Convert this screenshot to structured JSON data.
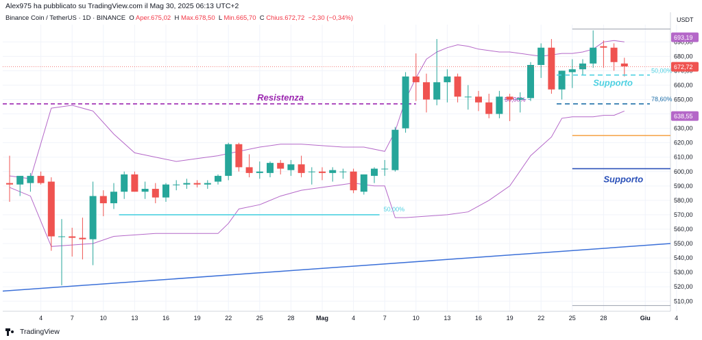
{
  "header": {
    "author_line": "Alex975 ha pubblicato su TradingView.com il Mag 30, 2025 06:13 UTC+2",
    "symbol": "Binance Coin / TetherUS · 1D · BINANCE",
    "open_label": "O",
    "open_text": "Aper.675,02",
    "high_label": "H",
    "high_text": "Max.678,50",
    "low_label": "L",
    "low_text": "Min.665,70",
    "close_label": "C",
    "close_text": "Chius.672,72",
    "change_text": "−2,30 (−0,34%)"
  },
  "brand": {
    "name": "TradingView",
    "icon": "tradingview-logo-icon"
  },
  "colors": {
    "up": "#26a69a",
    "down": "#ef5350",
    "bollinger": "#b467c8",
    "resistance": "#9c27b0",
    "support_cyan": "#4dd0e1",
    "trend": "#3a6fd8",
    "fib_blue": "#1e6fa8",
    "orange": "#f5a042",
    "support_blue": "#2a50b8",
    "axis_text": "#131722",
    "grid": "#f0f3fa"
  },
  "chart_data": {
    "type": "candlestick",
    "title": "",
    "currency": "USDT",
    "y_ticks": [
      510,
      520,
      530,
      540,
      550,
      560,
      570,
      580,
      590,
      600,
      610,
      620,
      630,
      640,
      650,
      660,
      670,
      680,
      690
    ],
    "y_tick_labels": [
      "510,00",
      "520,00",
      "530,00",
      "540,00",
      "550,00",
      "560,00",
      "570,00",
      "580,00",
      "590,00",
      "600,00",
      "610,00",
      "620,00",
      "630,00",
      "640,00",
      "650,00",
      "660,00",
      "670,00",
      "680,00",
      "690,00"
    ],
    "ylim": [
      503,
      702
    ],
    "x_tick_labels": [
      "4",
      "7",
      "10",
      "13",
      "16",
      "19",
      "22",
      "25",
      "28",
      "Mag",
      "4",
      "7",
      "10",
      "13",
      "16",
      "19",
      "22",
      "25",
      "28",
      "Giu",
      "4"
    ],
    "x_tick_days": [
      3,
      6,
      9,
      12,
      15,
      18,
      21,
      24,
      27,
      30,
      33,
      36,
      39,
      42,
      45,
      48,
      51,
      54,
      57,
      61,
      64
    ],
    "bold_x_labels": [
      "Mag",
      "Giu"
    ],
    "candles": [
      {
        "day": 0,
        "o": 592,
        "h": 611,
        "l": 579,
        "c": 591
      },
      {
        "day": 1,
        "o": 591,
        "h": 597,
        "l": 583,
        "c": 597
      },
      {
        "day": 2,
        "o": 592,
        "h": 599,
        "l": 586,
        "c": 597
      },
      {
        "day": 3,
        "o": 597,
        "h": 600,
        "l": 591,
        "c": 592
      },
      {
        "day": 4,
        "o": 593,
        "h": 596,
        "l": 545,
        "c": 555
      },
      {
        "day": 5,
        "o": 555,
        "h": 567,
        "l": 521,
        "c": 555
      },
      {
        "day": 6,
        "o": 555,
        "h": 561,
        "l": 541,
        "c": 554
      },
      {
        "day": 7,
        "o": 554,
        "h": 568,
        "l": 539,
        "c": 553
      },
      {
        "day": 8,
        "o": 553,
        "h": 593,
        "l": 535,
        "c": 583
      },
      {
        "day": 9,
        "o": 583,
        "h": 587,
        "l": 569,
        "c": 578
      },
      {
        "day": 10,
        "o": 578,
        "h": 592,
        "l": 574,
        "c": 586
      },
      {
        "day": 11,
        "o": 586,
        "h": 600,
        "l": 581,
        "c": 598
      },
      {
        "day": 12,
        "o": 598,
        "h": 600,
        "l": 586,
        "c": 586
      },
      {
        "day": 13,
        "o": 586,
        "h": 593,
        "l": 581,
        "c": 588
      },
      {
        "day": 14,
        "o": 588,
        "h": 592,
        "l": 578,
        "c": 582
      },
      {
        "day": 15,
        "o": 582,
        "h": 592,
        "l": 579,
        "c": 591
      },
      {
        "day": 16,
        "o": 591,
        "h": 594,
        "l": 587,
        "c": 591
      },
      {
        "day": 17,
        "o": 591,
        "h": 595,
        "l": 588,
        "c": 592
      },
      {
        "day": 18,
        "o": 592,
        "h": 594,
        "l": 589,
        "c": 591
      },
      {
        "day": 19,
        "o": 591,
        "h": 594,
        "l": 588,
        "c": 592
      },
      {
        "day": 20,
        "o": 593,
        "h": 598,
        "l": 591,
        "c": 597
      },
      {
        "day": 21,
        "o": 597,
        "h": 620,
        "l": 594,
        "c": 619
      },
      {
        "day": 22,
        "o": 619,
        "h": 620,
        "l": 600,
        "c": 603
      },
      {
        "day": 23,
        "o": 603,
        "h": 612,
        "l": 596,
        "c": 599
      },
      {
        "day": 24,
        "o": 599,
        "h": 607,
        "l": 595,
        "c": 600
      },
      {
        "day": 25,
        "o": 599,
        "h": 607,
        "l": 596,
        "c": 606
      },
      {
        "day": 26,
        "o": 606,
        "h": 608,
        "l": 598,
        "c": 602
      },
      {
        "day": 27,
        "o": 601,
        "h": 608,
        "l": 597,
        "c": 605
      },
      {
        "day": 28,
        "o": 605,
        "h": 611,
        "l": 596,
        "c": 599
      },
      {
        "day": 29,
        "o": 600,
        "h": 603,
        "l": 591,
        "c": 600
      },
      {
        "day": 30,
        "o": 600,
        "h": 603,
        "l": 594,
        "c": 599
      },
      {
        "day": 31,
        "o": 599,
        "h": 603,
        "l": 593,
        "c": 601
      },
      {
        "day": 32,
        "o": 600,
        "h": 602,
        "l": 595,
        "c": 600
      },
      {
        "day": 33,
        "o": 600,
        "h": 602,
        "l": 585,
        "c": 587
      },
      {
        "day": 34,
        "o": 586,
        "h": 598,
        "l": 584,
        "c": 598
      },
      {
        "day": 35,
        "o": 597,
        "h": 603,
        "l": 592,
        "c": 602
      },
      {
        "day": 36,
        "o": 602,
        "h": 608,
        "l": 597,
        "c": 602
      },
      {
        "day": 37,
        "o": 601,
        "h": 631,
        "l": 600,
        "c": 629
      },
      {
        "day": 38,
        "o": 630,
        "h": 669,
        "l": 627,
        "c": 666
      },
      {
        "day": 39,
        "o": 666,
        "h": 682,
        "l": 649,
        "c": 662
      },
      {
        "day": 40,
        "o": 662,
        "h": 668,
        "l": 641,
        "c": 650
      },
      {
        "day": 41,
        "o": 650,
        "h": 692,
        "l": 646,
        "c": 662
      },
      {
        "day": 42,
        "o": 662,
        "h": 671,
        "l": 648,
        "c": 666
      },
      {
        "day": 43,
        "o": 666,
        "h": 668,
        "l": 648,
        "c": 652
      },
      {
        "day": 44,
        "o": 652,
        "h": 660,
        "l": 643,
        "c": 652
      },
      {
        "day": 45,
        "o": 652,
        "h": 656,
        "l": 642,
        "c": 648
      },
      {
        "day": 46,
        "o": 648,
        "h": 654,
        "l": 637,
        "c": 640
      },
      {
        "day": 47,
        "o": 640,
        "h": 656,
        "l": 637,
        "c": 652
      },
      {
        "day": 48,
        "o": 652,
        "h": 654,
        "l": 635,
        "c": 650
      },
      {
        "day": 49,
        "o": 650,
        "h": 655,
        "l": 641,
        "c": 651
      },
      {
        "day": 50,
        "o": 651,
        "h": 676,
        "l": 649,
        "c": 674
      },
      {
        "day": 51,
        "o": 674,
        "h": 689,
        "l": 665,
        "c": 686
      },
      {
        "day": 52,
        "o": 686,
        "h": 692,
        "l": 654,
        "c": 657
      },
      {
        "day": 53,
        "o": 657,
        "h": 670,
        "l": 650,
        "c": 670
      },
      {
        "day": 54,
        "o": 669,
        "h": 678,
        "l": 658,
        "c": 671
      },
      {
        "day": 55,
        "o": 671,
        "h": 678,
        "l": 667,
        "c": 675
      },
      {
        "day": 56,
        "o": 675,
        "h": 698,
        "l": 672,
        "c": 686
      },
      {
        "day": 57,
        "o": 687,
        "h": 691,
        "l": 672,
        "c": 686
      },
      {
        "day": 58,
        "o": 686,
        "h": 689,
        "l": 670,
        "c": 676
      },
      {
        "day": 59,
        "o": 675,
        "h": 679,
        "l": 666,
        "c": 673
      }
    ],
    "bollinger_upper": [
      [
        0,
        597
      ],
      [
        2,
        595
      ],
      [
        4,
        644
      ],
      [
        6,
        646
      ],
      [
        8,
        642
      ],
      [
        10,
        626
      ],
      [
        12,
        613
      ],
      [
        14,
        610
      ],
      [
        16,
        607
      ],
      [
        18,
        609
      ],
      [
        20,
        611
      ],
      [
        22,
        614
      ],
      [
        24,
        617
      ],
      [
        26,
        619
      ],
      [
        28,
        619
      ],
      [
        30,
        618
      ],
      [
        32,
        617
      ],
      [
        34,
        617
      ],
      [
        36,
        614
      ],
      [
        37,
        628
      ],
      [
        38,
        650
      ],
      [
        39,
        665
      ],
      [
        40,
        678
      ],
      [
        41,
        683
      ],
      [
        42,
        686
      ],
      [
        43,
        688
      ],
      [
        44,
        687
      ],
      [
        45,
        685
      ],
      [
        46,
        684
      ],
      [
        47,
        683
      ],
      [
        48,
        683
      ],
      [
        49,
        682
      ],
      [
        50,
        681
      ],
      [
        51,
        680
      ],
      [
        52,
        681
      ],
      [
        53,
        682
      ],
      [
        54,
        682
      ],
      [
        55,
        683
      ],
      [
        56,
        685
      ],
      [
        57,
        690
      ],
      [
        58,
        691
      ],
      [
        59,
        690
      ]
    ],
    "bollinger_lower": [
      [
        0,
        589
      ],
      [
        2,
        583
      ],
      [
        4,
        548
      ],
      [
        6,
        549
      ],
      [
        8,
        550
      ],
      [
        10,
        555
      ],
      [
        12,
        556
      ],
      [
        14,
        557
      ],
      [
        16,
        557
      ],
      [
        18,
        557
      ],
      [
        20,
        557
      ],
      [
        21,
        564
      ],
      [
        22,
        574
      ],
      [
        24,
        577
      ],
      [
        26,
        583
      ],
      [
        28,
        587
      ],
      [
        30,
        589
      ],
      [
        32,
        591
      ],
      [
        33,
        592
      ],
      [
        34,
        591
      ],
      [
        35,
        590
      ],
      [
        36,
        590
      ],
      [
        37,
        568
      ],
      [
        38,
        568
      ],
      [
        40,
        569
      ],
      [
        42,
        570
      ],
      [
        44,
        572
      ],
      [
        46,
        580
      ],
      [
        48,
        590
      ],
      [
        50,
        611
      ],
      [
        52,
        624
      ],
      [
        53,
        637
      ],
      [
        54,
        638
      ],
      [
        55,
        638
      ],
      [
        56,
        638
      ],
      [
        57,
        639
      ],
      [
        58,
        639
      ],
      [
        59,
        642
      ]
    ],
    "levels": {
      "resistance": {
        "label": "Resistenza",
        "price": 647
      },
      "support_top": {
        "label": "Supporto",
        "price": 667,
        "fib_label": "50,00%"
      },
      "fib_78": {
        "label": "78,60%",
        "price": 647
      },
      "fib_50_mid": {
        "label": "50,00%",
        "price": 650
      },
      "fib_50_low": {
        "label": "50,00%",
        "price": 570
      },
      "orange_line": {
        "price": 625
      },
      "support_low": {
        "label": "Supporto",
        "price": 602
      },
      "trendline": {
        "from": [
          0,
          517
        ],
        "to": [
          65,
          550
        ]
      },
      "price_dotted": 672.72
    },
    "price_labels": [
      {
        "text": "693,19",
        "price": 693.19,
        "color": "#b467c8"
      },
      {
        "text": "672,72",
        "price": 672.72,
        "color": "#ef5350"
      },
      {
        "text": "638,55",
        "price": 638.55,
        "color": "#b467c8"
      }
    ]
  }
}
